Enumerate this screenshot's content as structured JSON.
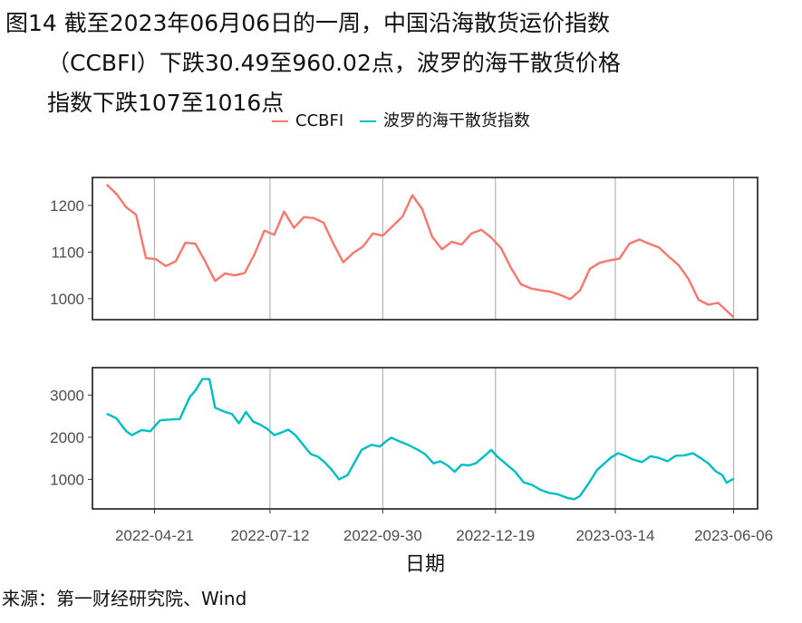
{
  "figure": {
    "title_line1": "图14  截至2023年06月06日的一周，中国沿海散货运价指数",
    "title_line2": "（CCBFI）下跌30.49至960.02点，波罗的海干散货价格",
    "title_line3": "指数下跌107至1016点",
    "source": "来源：第一财经研究院、Wind"
  },
  "chart_data": [
    {
      "type": "line",
      "panel": "top",
      "xlabel": "日期",
      "x_ticks": [
        "2022-04-21",
        "2022-07-12",
        "2022-09-30",
        "2022-12-19",
        "2023-03-14",
        "2023-06-06"
      ],
      "y_ticks": [
        1000,
        1100,
        1200
      ],
      "ylim": [
        955,
        1260
      ],
      "xlim": [
        "2022-03-08",
        "2023-06-23"
      ],
      "grid": "vertical at x ticks",
      "legend_position": "top",
      "series": [
        {
          "name": "CCBFI",
          "color": "#F8766D",
          "points": [
            [
              "2022-03-18",
              1245
            ],
            [
              "2022-03-25",
              1225
            ],
            [
              "2022-04-01",
              1196
            ],
            [
              "2022-04-08",
              1180
            ],
            [
              "2022-04-15",
              1087
            ],
            [
              "2022-04-22",
              1085
            ],
            [
              "2022-04-29",
              1070
            ],
            [
              "2022-05-06",
              1080
            ],
            [
              "2022-05-13",
              1120
            ],
            [
              "2022-05-20",
              1118
            ],
            [
              "2022-05-27",
              1080
            ],
            [
              "2022-06-03",
              1038
            ],
            [
              "2022-06-10",
              1054
            ],
            [
              "2022-06-17",
              1050
            ],
            [
              "2022-06-24",
              1055
            ],
            [
              "2022-07-01",
              1095
            ],
            [
              "2022-07-08",
              1146
            ],
            [
              "2022-07-15",
              1137
            ],
            [
              "2022-07-22",
              1187
            ],
            [
              "2022-07-29",
              1152
            ],
            [
              "2022-08-05",
              1175
            ],
            [
              "2022-08-12",
              1173
            ],
            [
              "2022-08-19",
              1163
            ],
            [
              "2022-08-26",
              1118
            ],
            [
              "2022-09-02",
              1078
            ],
            [
              "2022-09-09",
              1098
            ],
            [
              "2022-09-16",
              1112
            ],
            [
              "2022-09-23",
              1140
            ],
            [
              "2022-09-30",
              1135
            ],
            [
              "2022-10-14",
              1176
            ],
            [
              "2022-10-21",
              1222
            ],
            [
              "2022-10-28",
              1192
            ],
            [
              "2022-11-04",
              1133
            ],
            [
              "2022-11-11",
              1106
            ],
            [
              "2022-11-18",
              1122
            ],
            [
              "2022-11-25",
              1116
            ],
            [
              "2022-12-02",
              1140
            ],
            [
              "2022-12-09",
              1148
            ],
            [
              "2022-12-16",
              1131
            ],
            [
              "2022-12-23",
              1108
            ],
            [
              "2022-12-30",
              1066
            ],
            [
              "2023-01-06",
              1031
            ],
            [
              "2023-01-13",
              1022
            ],
            [
              "2023-01-20",
              1018
            ],
            [
              "2023-01-27",
              1015
            ],
            [
              "2023-02-03",
              1008
            ],
            [
              "2023-02-10",
              999
            ],
            [
              "2023-02-17",
              1018
            ],
            [
              "2023-02-24",
              1064
            ],
            [
              "2023-03-03",
              1077
            ],
            [
              "2023-03-10",
              1082
            ],
            [
              "2023-03-17",
              1086
            ],
            [
              "2023-03-24",
              1118
            ],
            [
              "2023-03-31",
              1127
            ],
            [
              "2023-04-07",
              1118
            ],
            [
              "2023-04-14",
              1110
            ],
            [
              "2023-04-21",
              1090
            ],
            [
              "2023-04-28",
              1072
            ],
            [
              "2023-05-05",
              1042
            ],
            [
              "2023-05-12",
              998
            ],
            [
              "2023-05-19",
              987
            ],
            [
              "2023-05-26",
              991
            ],
            [
              "2023-06-06",
              960
            ]
          ]
        }
      ]
    },
    {
      "type": "line",
      "panel": "bottom",
      "xlabel": "日期",
      "x_ticks": [
        "2022-04-21",
        "2022-07-12",
        "2022-09-30",
        "2022-12-19",
        "2023-03-14",
        "2023-06-06"
      ],
      "y_ticks": [
        1000,
        2000,
        3000
      ],
      "ylim": [
        300,
        3650
      ],
      "xlim": [
        "2022-03-08",
        "2023-06-23"
      ],
      "grid": "vertical at x ticks",
      "series": [
        {
          "name": "波罗的海干散货指数",
          "color": "#00BFC4",
          "points": [
            [
              "2022-03-18",
              2560
            ],
            [
              "2022-03-25",
              2450
            ],
            [
              "2022-04-01",
              2140
            ],
            [
              "2022-04-05",
              2050
            ],
            [
              "2022-04-12",
              2170
            ],
            [
              "2022-04-18",
              2140
            ],
            [
              "2022-04-25",
              2400
            ],
            [
              "2022-05-02",
              2420
            ],
            [
              "2022-05-09",
              2430
            ],
            [
              "2022-05-16",
              2950
            ],
            [
              "2022-05-20",
              3100
            ],
            [
              "2022-05-25",
              3380
            ],
            [
              "2022-05-30",
              3380
            ],
            [
              "2022-06-03",
              2700
            ],
            [
              "2022-06-10",
              2600
            ],
            [
              "2022-06-15",
              2550
            ],
            [
              "2022-06-20",
              2330
            ],
            [
              "2022-06-25",
              2600
            ],
            [
              "2022-06-30",
              2370
            ],
            [
              "2022-07-05",
              2300
            ],
            [
              "2022-07-10",
              2200
            ],
            [
              "2022-07-15",
              2050
            ],
            [
              "2022-07-20",
              2110
            ],
            [
              "2022-07-25",
              2180
            ],
            [
              "2022-07-30",
              2050
            ],
            [
              "2022-08-05",
              1800
            ],
            [
              "2022-08-10",
              1600
            ],
            [
              "2022-08-15",
              1540
            ],
            [
              "2022-08-20",
              1400
            ],
            [
              "2022-08-25",
              1220
            ],
            [
              "2022-08-30",
              1000
            ],
            [
              "2022-09-05",
              1100
            ],
            [
              "2022-09-10",
              1400
            ],
            [
              "2022-09-15",
              1700
            ],
            [
              "2022-09-22",
              1820
            ],
            [
              "2022-09-28",
              1780
            ],
            [
              "2022-10-03",
              1920
            ],
            [
              "2022-10-06",
              1990
            ],
            [
              "2022-10-12",
              1900
            ],
            [
              "2022-10-18",
              1820
            ],
            [
              "2022-10-25",
              1700
            ],
            [
              "2022-10-30",
              1600
            ],
            [
              "2022-11-05",
              1380
            ],
            [
              "2022-11-10",
              1430
            ],
            [
              "2022-11-15",
              1330
            ],
            [
              "2022-11-20",
              1180
            ],
            [
              "2022-11-25",
              1350
            ],
            [
              "2022-11-30",
              1330
            ],
            [
              "2022-12-05",
              1380
            ],
            [
              "2022-12-12",
              1580
            ],
            [
              "2022-12-16",
              1700
            ],
            [
              "2022-12-20",
              1550
            ],
            [
              "2022-12-26",
              1380
            ],
            [
              "2023-01-02",
              1180
            ],
            [
              "2023-01-08",
              930
            ],
            [
              "2023-01-14",
              870
            ],
            [
              "2023-01-20",
              750
            ],
            [
              "2023-01-26",
              680
            ],
            [
              "2023-02-01",
              650
            ],
            [
              "2023-02-08",
              560
            ],
            [
              "2023-02-13",
              530
            ],
            [
              "2023-02-17",
              610
            ],
            [
              "2023-02-23",
              900
            ],
            [
              "2023-03-01",
              1220
            ],
            [
              "2023-03-06",
              1370
            ],
            [
              "2023-03-11",
              1520
            ],
            [
              "2023-03-16",
              1620
            ],
            [
              "2023-03-21",
              1560
            ],
            [
              "2023-03-26",
              1480
            ],
            [
              "2023-04-02",
              1410
            ],
            [
              "2023-04-08",
              1550
            ],
            [
              "2023-04-14",
              1510
            ],
            [
              "2023-04-20",
              1430
            ],
            [
              "2023-04-26",
              1560
            ],
            [
              "2023-05-02",
              1570
            ],
            [
              "2023-05-08",
              1620
            ],
            [
              "2023-05-13",
              1520
            ],
            [
              "2023-05-19",
              1380
            ],
            [
              "2023-05-24",
              1200
            ],
            [
              "2023-05-29",
              1100
            ],
            [
              "2023-06-01",
              920
            ],
            [
              "2023-06-06",
              1016
            ]
          ]
        }
      ]
    }
  ]
}
